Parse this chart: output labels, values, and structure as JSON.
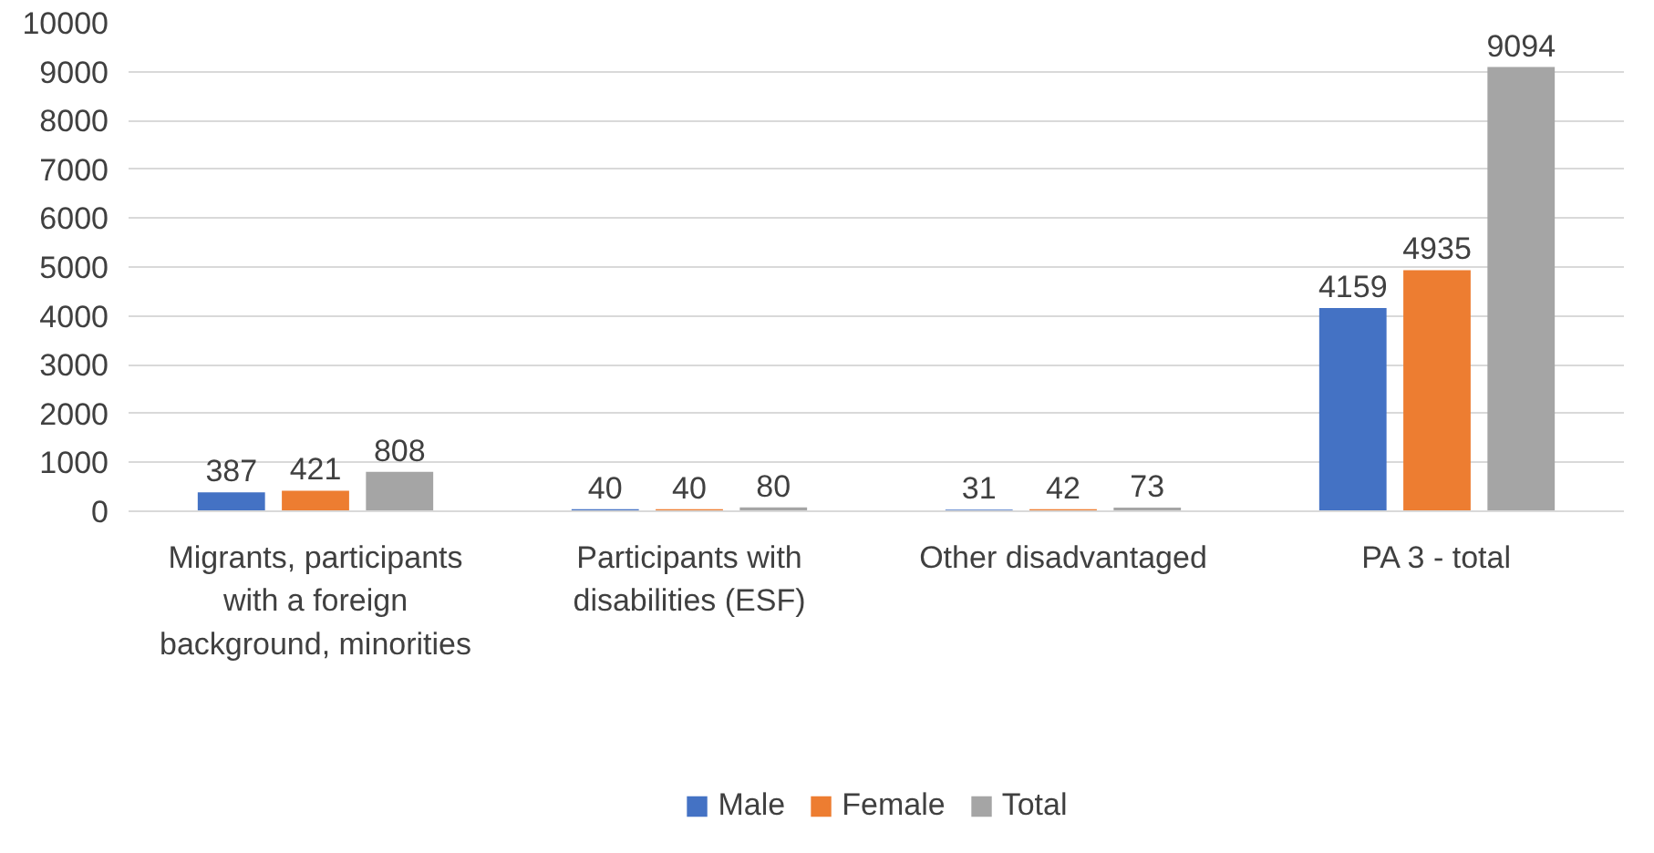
{
  "chart_data": {
    "type": "bar",
    "categories": [
      "Migrants, participants with a foreign background, minorities",
      "Participants with disabilities (ESF)",
      "Other disadvantaged",
      "PA 3 - total"
    ],
    "series": [
      {
        "name": "Male",
        "color": "#4472c4",
        "values": [
          387,
          40,
          31,
          4159
        ]
      },
      {
        "name": "Female",
        "color": "#ed7d31",
        "values": [
          421,
          40,
          42,
          4935
        ]
      },
      {
        "name": "Total",
        "color": "#a5a5a5",
        "values": [
          808,
          80,
          73,
          9094
        ]
      }
    ],
    "ylim": [
      0,
      10000
    ],
    "yticks": [
      0,
      1000,
      2000,
      3000,
      4000,
      5000,
      6000,
      7000,
      8000,
      9000,
      10000
    ],
    "grid": "y",
    "legend": "bottom",
    "data_labels": true
  }
}
